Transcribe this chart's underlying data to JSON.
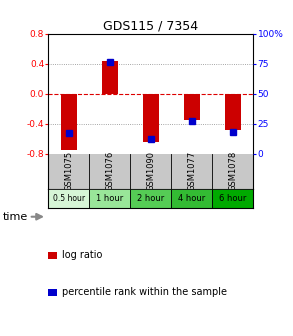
{
  "title": "GDS115 / 7354",
  "samples": [
    "GSM1075",
    "GSM1076",
    "GSM1090",
    "GSM1077",
    "GSM1078"
  ],
  "time_labels": [
    "0.5 hour",
    "1 hour",
    "2 hour",
    "4 hour",
    "6 hour"
  ],
  "time_colors": [
    "#d6f5d6",
    "#99e699",
    "#55cc55",
    "#33bb33",
    "#00aa00"
  ],
  "log_ratios": [
    -0.75,
    0.43,
    -0.65,
    -0.35,
    -0.48
  ],
  "percentile_ranks": [
    17,
    76,
    12,
    27,
    18
  ],
  "ylim": [
    -0.8,
    0.8
  ],
  "yticks_left": [
    -0.8,
    -0.4,
    0.0,
    0.4,
    0.8
  ],
  "yticks_right": [
    0,
    25,
    50,
    75,
    100
  ],
  "bar_color": "#cc0000",
  "dot_color": "#0000cc",
  "bg_color": "#ffffff",
  "grid_color": "#888888",
  "zero_line_color": "#dd0000",
  "sample_bg_color": "#c8c8c8",
  "legend_log_ratio": "log ratio",
  "legend_percentile": "percentile rank within the sample",
  "time_label": "time",
  "bar_width": 0.4
}
